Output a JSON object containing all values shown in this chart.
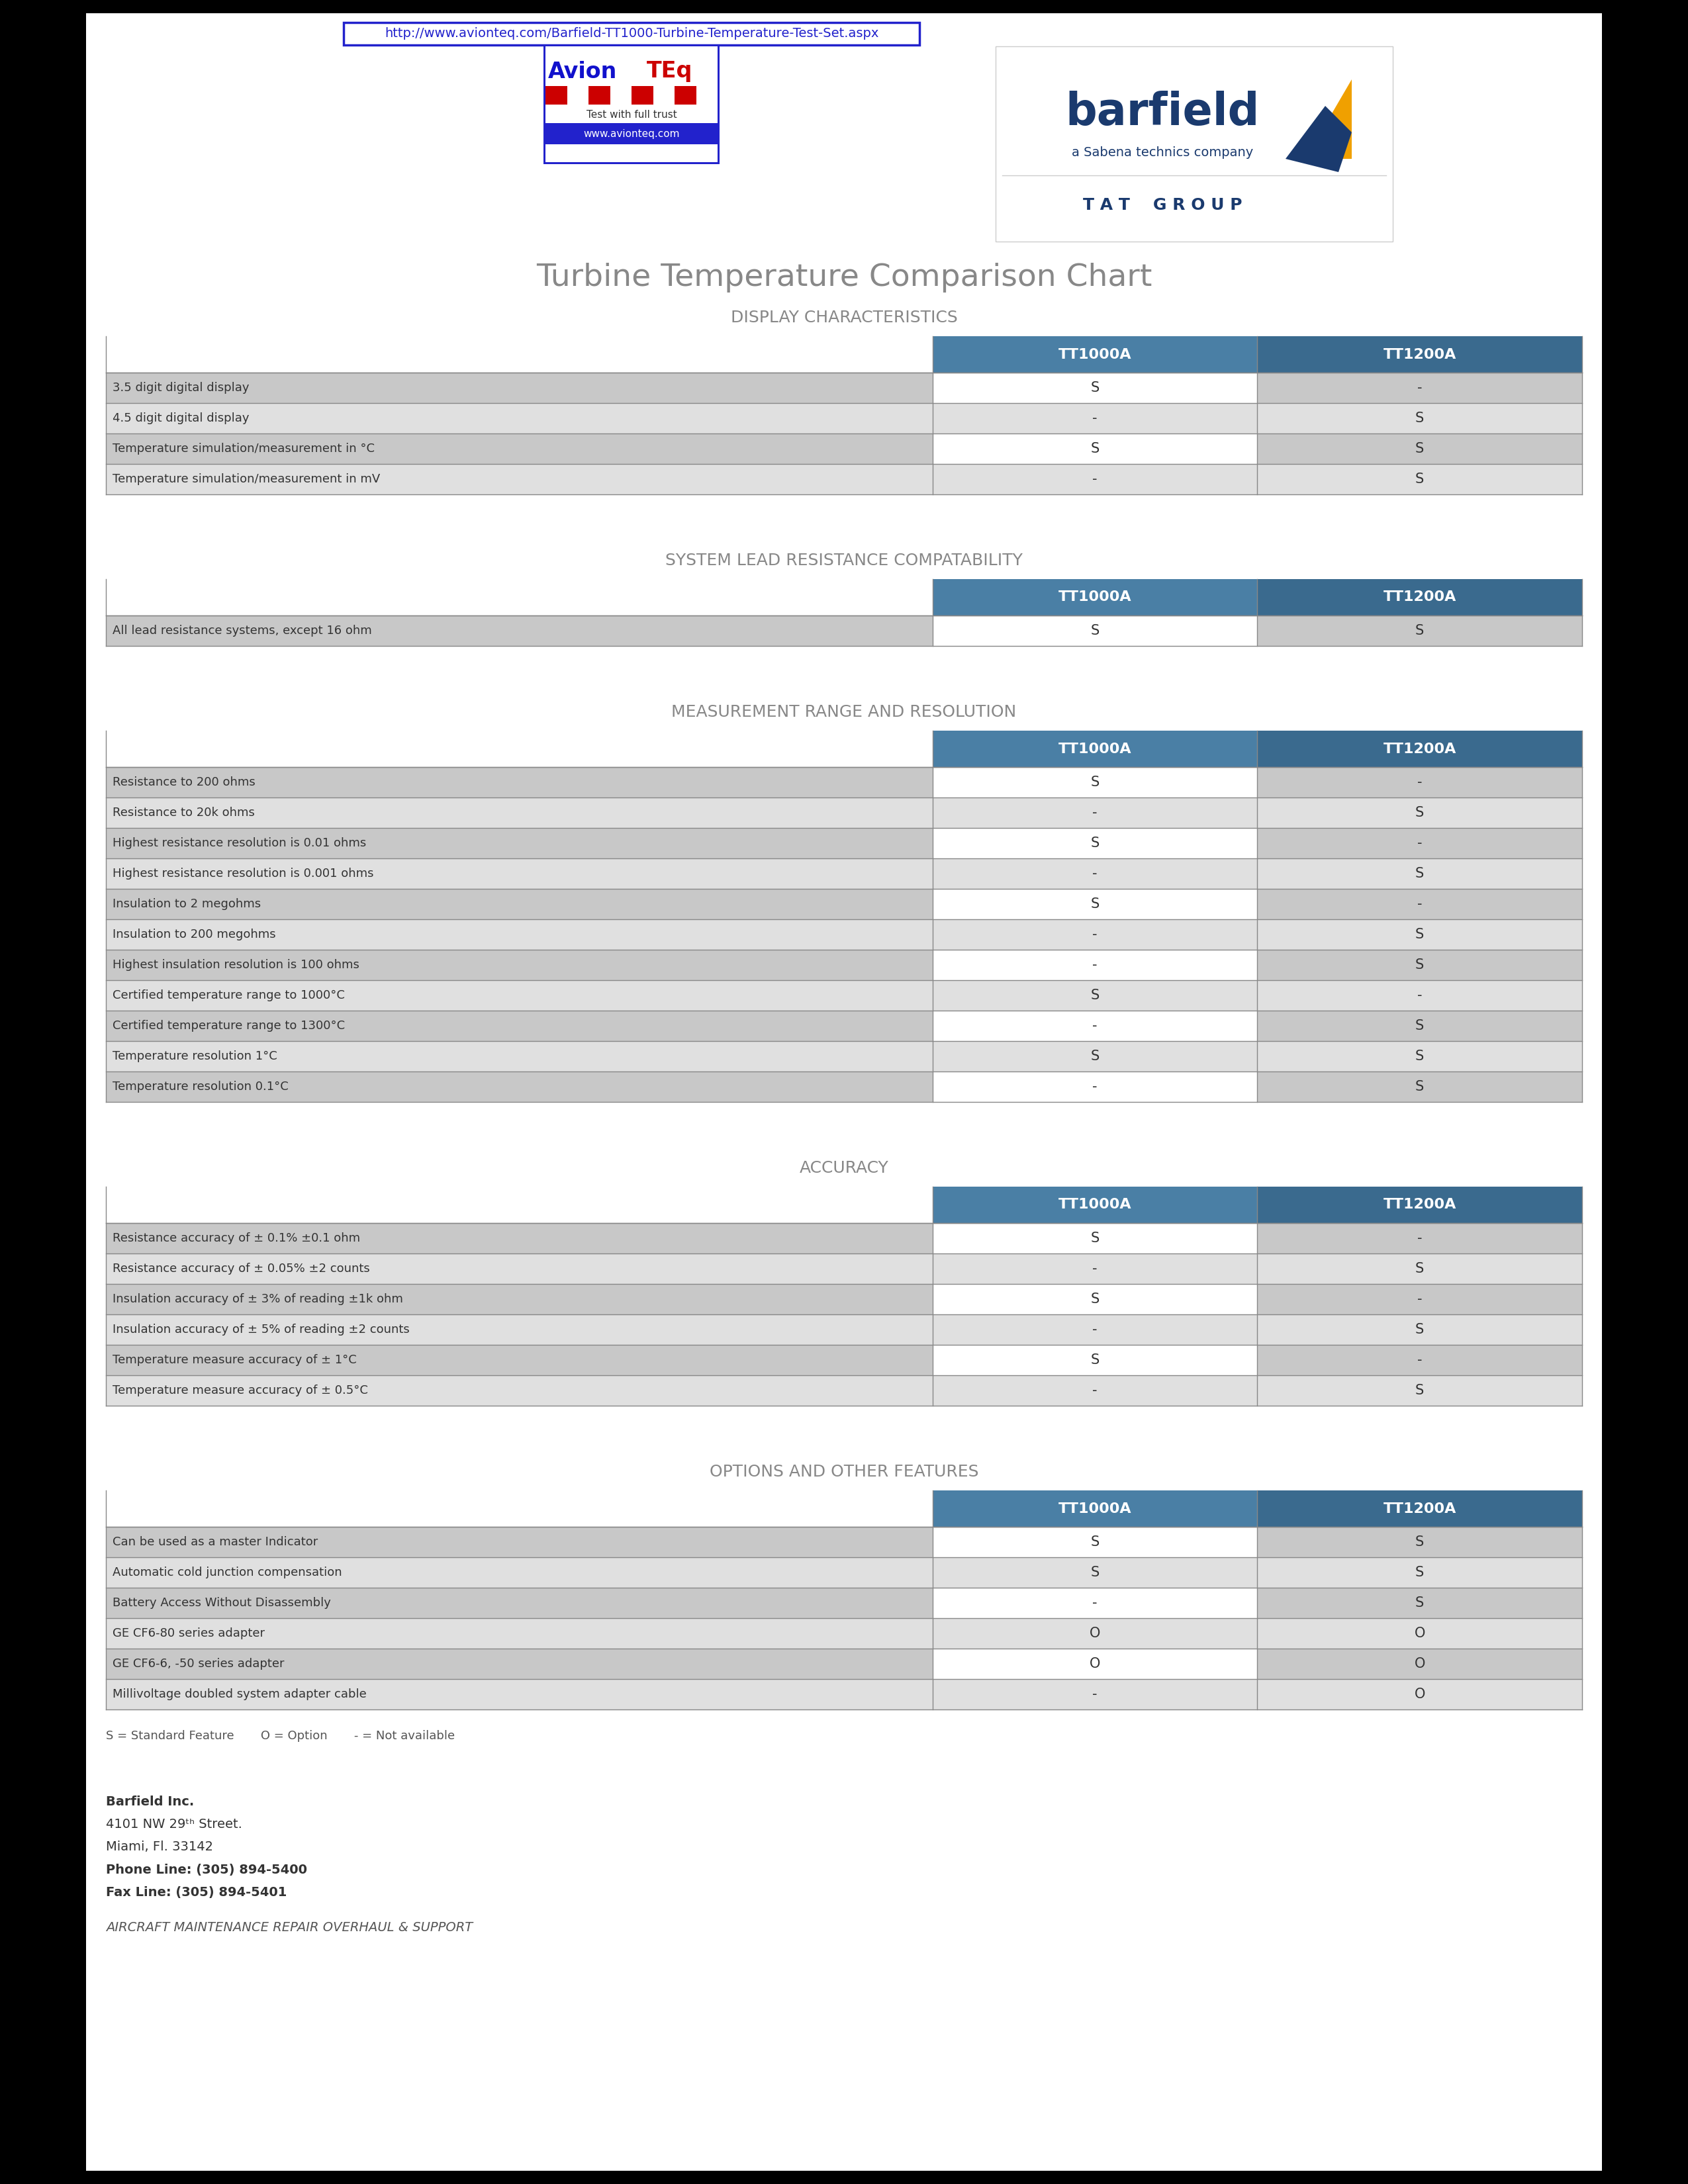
{
  "title": "Turbine Temperature Comparison Chart",
  "url": "http://www.avionteq.com/Barfield-TT1000-Turbine-Temperature-Test-Set.aspx",
  "background_color": "#000000",
  "paper_color": "#ffffff",
  "header_color_left": "#4a7fa5",
  "header_color_right": "#3a6a8e",
  "section_title_color": "#888888",
  "row_color_odd": "#c8c8c8",
  "row_color_even": "#e0e0e0",
  "text_color_dark": "#333333",
  "text_color_light": "#ffffff",
  "sections": [
    {
      "title": "DISPLAY CHARACTERISTICS",
      "rows": [
        {
          "label": "3.5 digit digital display",
          "tt1000a": "S",
          "tt1200a": "-"
        },
        {
          "label": "4.5 digit digital display",
          "tt1000a": "-",
          "tt1200a": "S"
        },
        {
          "label": "Temperature simulation/measurement in °C",
          "tt1000a": "S",
          "tt1200a": "S"
        },
        {
          "label": "Temperature simulation/measurement in mV",
          "tt1000a": "-",
          "tt1200a": "S"
        }
      ]
    },
    {
      "title": "SYSTEM LEAD RESISTANCE COMPATABILITY",
      "rows": [
        {
          "label": "All lead resistance systems, except 16 ohm",
          "tt1000a": "S",
          "tt1200a": "S"
        }
      ]
    },
    {
      "title": "MEASUREMENT RANGE AND RESOLUTION",
      "rows": [
        {
          "label": "Resistance to 200 ohms",
          "tt1000a": "S",
          "tt1200a": "-"
        },
        {
          "label": "Resistance to 20k ohms",
          "tt1000a": "-",
          "tt1200a": "S"
        },
        {
          "label": "Highest resistance resolution is 0.01 ohms",
          "tt1000a": "S",
          "tt1200a": "-"
        },
        {
          "label": "Highest resistance resolution is 0.001 ohms",
          "tt1000a": "-",
          "tt1200a": "S"
        },
        {
          "label": "Insulation to 2 megohms",
          "tt1000a": "S",
          "tt1200a": "-"
        },
        {
          "label": "Insulation to 200 megohms",
          "tt1000a": "-",
          "tt1200a": "S"
        },
        {
          "label": "Highest insulation resolution is 100 ohms",
          "tt1000a": "-",
          "tt1200a": "S"
        },
        {
          "label": "Certified temperature range to 1000°C",
          "tt1000a": "S",
          "tt1200a": "-"
        },
        {
          "label": "Certified temperature range to 1300°C",
          "tt1000a": "-",
          "tt1200a": "S"
        },
        {
          "label": "Temperature resolution 1°C",
          "tt1000a": "S",
          "tt1200a": "S"
        },
        {
          "label": "Temperature resolution 0.1°C",
          "tt1000a": "-",
          "tt1200a": "S"
        }
      ]
    },
    {
      "title": "ACCURACY",
      "rows": [
        {
          "label": "Resistance accuracy of ± 0.1% ±0.1 ohm",
          "tt1000a": "S",
          "tt1200a": "-"
        },
        {
          "label": "Resistance accuracy of ± 0.05% ±2 counts",
          "tt1000a": "-",
          "tt1200a": "S"
        },
        {
          "label": "Insulation accuracy of ± 3% of reading ±1k ohm",
          "tt1000a": "S",
          "tt1200a": "-"
        },
        {
          "label": "Insulation accuracy of ± 5% of reading ±2 counts",
          "tt1000a": "-",
          "tt1200a": "S"
        },
        {
          "label": "Temperature measure accuracy of ± 1°C",
          "tt1000a": "S",
          "tt1200a": "-"
        },
        {
          "label": "Temperature measure accuracy of ± 0.5°C",
          "tt1000a": "-",
          "tt1200a": "S"
        }
      ]
    },
    {
      "title": "OPTIONS AND OTHER FEATURES",
      "rows": [
        {
          "label": "Can be used as a master Indicator",
          "tt1000a": "S",
          "tt1200a": "S"
        },
        {
          "label": "Automatic cold junction compensation",
          "tt1000a": "S",
          "tt1200a": "S"
        },
        {
          "label": "Battery Access Without Disassembly",
          "tt1000a": "-",
          "tt1200a": "S"
        },
        {
          "label": "GE CF6-80 series adapter",
          "tt1000a": "O",
          "tt1200a": "O"
        },
        {
          "label": "GE CF6-6, -50 series adapter",
          "tt1000a": "O",
          "tt1200a": "O"
        },
        {
          "label": "Millivoltage doubled system adapter cable",
          "tt1000a": "-",
          "tt1200a": "O"
        }
      ]
    }
  ],
  "footer_text": "S = Standard Feature       O = Option       - = Not available",
  "company_info": [
    {
      "text": "Barfield Inc.",
      "bold": true,
      "italic": false
    },
    {
      "text": "4101 NW 29ᵗʰ Street.",
      "bold": false,
      "italic": false
    },
    {
      "text": "Miami, Fl. 33142",
      "bold": false,
      "italic": false
    },
    {
      "text": "Phone Line: (305) 894-5400",
      "bold": true,
      "italic": false
    },
    {
      "text": "Fax Line: (305) 894-5401",
      "bold": true,
      "italic": false
    }
  ],
  "company_tagline": "AIRCRAFT MAINTENANCE REPAIR OVERHAUL & SUPPORT"
}
